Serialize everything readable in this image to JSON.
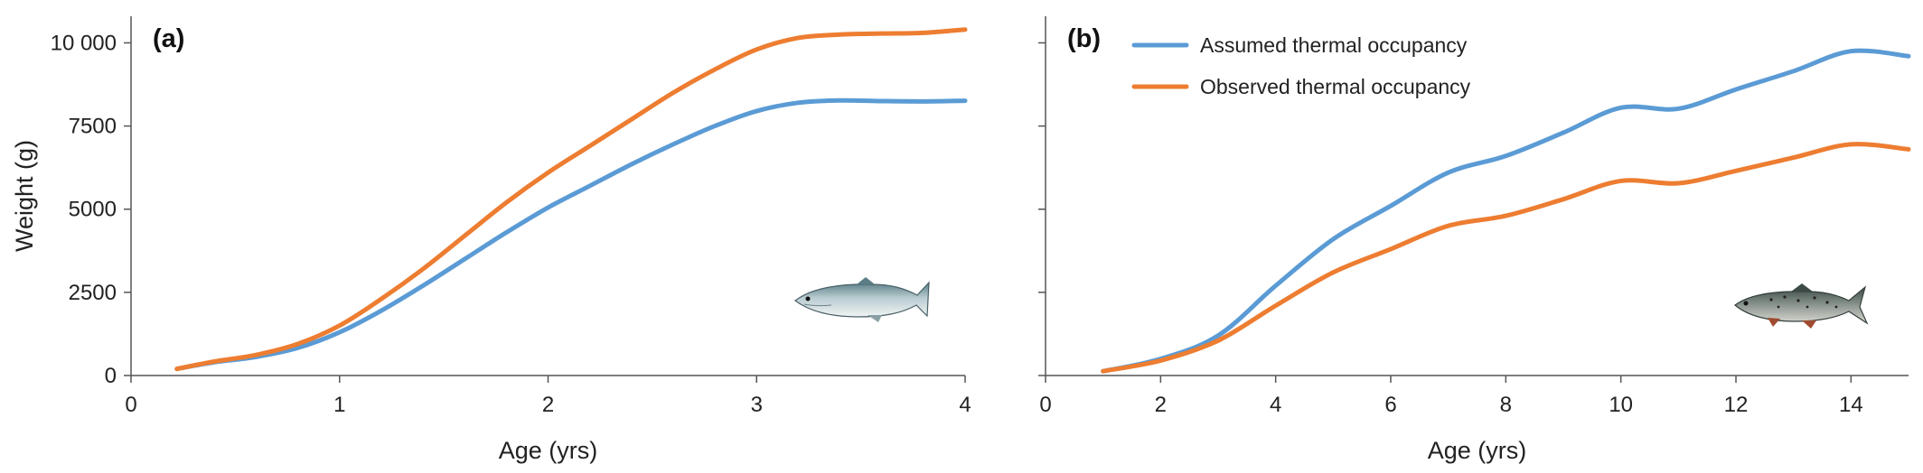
{
  "colors": {
    "assumed": "#5b9bd5",
    "observed": "#ed7d31"
  },
  "chart_data": [
    {
      "type": "line",
      "panel_label": "(a)",
      "ylabel": "Weight (g)",
      "xlabel": "Age (yrs)",
      "xlim": [
        0,
        4
      ],
      "ylim": [
        0,
        10800
      ],
      "xticks": [
        0,
        1,
        2,
        3,
        4
      ],
      "yticks": [
        0,
        2500,
        5000,
        7500,
        10000
      ],
      "ytick_labels": [
        "0",
        "2500",
        "5000",
        "7500",
        "10 000"
      ],
      "icon": "salmon-icon",
      "series": [
        {
          "key": "assumed",
          "x": [
            0.22,
            0.4,
            0.6,
            0.8,
            1.0,
            1.2,
            1.4,
            1.6,
            1.8,
            2.0,
            2.2,
            2.4,
            2.6,
            2.8,
            3.0,
            3.2,
            3.4,
            3.6,
            3.8,
            4.0
          ],
          "values": [
            200,
            400,
            560,
            830,
            1300,
            1950,
            2700,
            3500,
            4300,
            5050,
            5700,
            6350,
            6950,
            7500,
            7950,
            8200,
            8270,
            8250,
            8240,
            8260
          ]
        },
        {
          "key": "observed",
          "x": [
            0.22,
            0.4,
            0.6,
            0.8,
            1.0,
            1.2,
            1.4,
            1.6,
            1.8,
            2.0,
            2.2,
            2.4,
            2.6,
            2.8,
            3.0,
            3.2,
            3.4,
            3.6,
            3.8,
            4.0
          ],
          "values": [
            200,
            420,
            620,
            950,
            1500,
            2300,
            3200,
            4200,
            5200,
            6100,
            6900,
            7700,
            8500,
            9200,
            9800,
            10150,
            10250,
            10280,
            10300,
            10400
          ]
        }
      ]
    },
    {
      "type": "line",
      "panel_label": "(b)",
      "ylabel": "",
      "xlabel": "Age (yrs)",
      "xlim": [
        0,
        15
      ],
      "ylim": [
        0,
        10800
      ],
      "xticks": [
        0,
        2,
        4,
        6,
        8,
        10,
        12,
        14
      ],
      "yticks": [
        0,
        2500,
        5000,
        7500,
        10000
      ],
      "ytick_labels": [
        "",
        "",
        "",
        "",
        ""
      ],
      "icon": "trout-icon",
      "legend": [
        {
          "key": "assumed",
          "label": "Assumed thermal occupancy"
        },
        {
          "key": "observed",
          "label": "Observed thermal occupancy"
        }
      ],
      "series": [
        {
          "key": "assumed",
          "x": [
            1,
            2,
            3,
            4,
            5,
            6,
            7,
            8,
            9,
            10,
            11,
            12,
            13,
            14,
            15
          ],
          "values": [
            130,
            500,
            1200,
            2700,
            4100,
            5100,
            6100,
            6600,
            7300,
            8050,
            8020,
            8600,
            9150,
            9750,
            9600
          ]
        },
        {
          "key": "observed",
          "x": [
            1,
            2,
            3,
            4,
            5,
            6,
            7,
            8,
            9,
            10,
            11,
            12,
            13,
            14,
            15
          ],
          "values": [
            130,
            450,
            1050,
            2100,
            3100,
            3800,
            4500,
            4800,
            5300,
            5850,
            5780,
            6150,
            6550,
            6950,
            6800
          ]
        }
      ]
    }
  ]
}
